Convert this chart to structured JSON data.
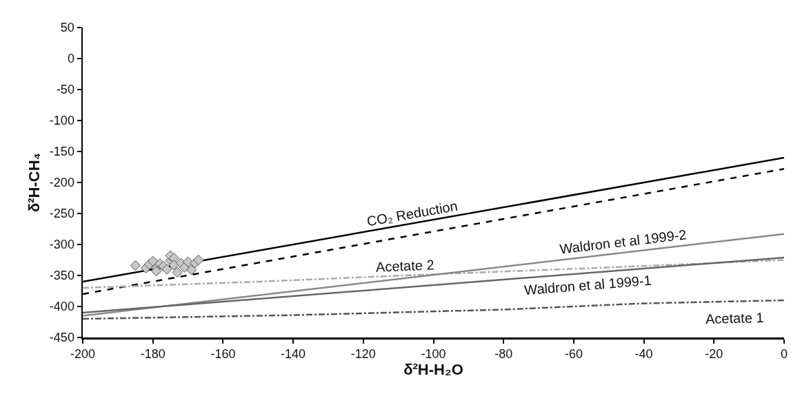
{
  "chart_data": {
    "type": "line",
    "xlabel": "δ²H-H₂O",
    "ylabel": "δ²H-CH₄",
    "xlim": [
      -200,
      0
    ],
    "xticks": [
      -200,
      -180,
      -160,
      -140,
      -120,
      -100,
      -80,
      -60,
      -40,
      -20,
      0
    ],
    "ylim": [
      -450,
      50
    ],
    "yticks": [
      -450,
      -400,
      -350,
      -300,
      -250,
      -200,
      -150,
      -100,
      -50,
      0,
      50
    ],
    "grid": false,
    "legend": false,
    "series": [
      {
        "name": "CO₂ Reduction",
        "color": "#000000",
        "line_style": "solid",
        "x": [
          -200,
          0
        ],
        "values": [
          -360,
          -160
        ]
      },
      {
        "color": "#000000",
        "line_style": "dotted",
        "x": [
          -200,
          0
        ],
        "values": [
          -380,
          -178
        ]
      },
      {
        "name": "Acetate 2",
        "color": "#aaaaaa",
        "line_style": "dashed",
        "x": [
          -200,
          -150,
          -100,
          -50,
          0
        ],
        "values": [
          -370,
          -360,
          -348,
          -337,
          -325
        ]
      },
      {
        "name": "Waldron et al 1999-2",
        "color": "#888888",
        "line_style": "solid",
        "x": [
          -200,
          0
        ],
        "values": [
          -415,
          -283
        ]
      },
      {
        "name": "Waldron et al 1999-1",
        "color": "#666666",
        "line_style": "solid",
        "x": [
          -200,
          0
        ],
        "values": [
          -410,
          -321
        ]
      },
      {
        "name": "Acetate 1",
        "color": "#555555",
        "line_style": "dashed",
        "x": [
          -200,
          -140,
          -80,
          -40,
          0
        ],
        "values": [
          -420,
          -414,
          -405,
          -395,
          -390
        ]
      },
      {
        "type": "scatter",
        "color": "#c8c8c8",
        "marker": "diamond",
        "x": [
          -185,
          -182,
          -181,
          -180,
          -179,
          -179,
          -178,
          -177,
          -176,
          -175,
          -175,
          -174,
          -174,
          -173,
          -172,
          -171,
          -170,
          -169,
          -168,
          -167
        ],
        "values": [
          -334,
          -338,
          -332,
          -327,
          -338,
          -343,
          -331,
          -335,
          -340,
          -326,
          -318,
          -322,
          -333,
          -345,
          -330,
          -337,
          -328,
          -341,
          -330,
          -325
        ]
      }
    ]
  }
}
